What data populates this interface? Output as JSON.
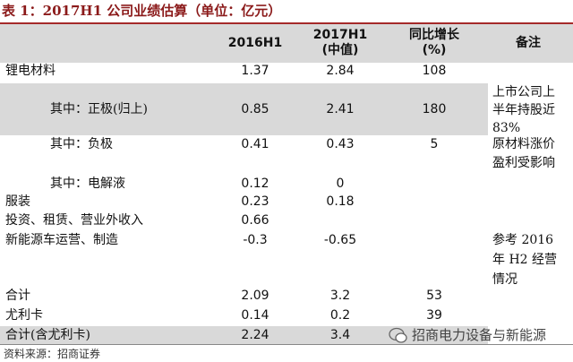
{
  "title": "表 1：2017H1 公司业绩估算（单位：亿元）",
  "table": {
    "header": [
      [
        "2016H1"
      ],
      [
        "2017H1",
        "(中值)"
      ],
      [
        "同比增长",
        "(%)"
      ],
      [
        "备注"
      ]
    ],
    "rows": [
      {
        "label": "锂电材料",
        "h2016": "1.37",
        "h2017": "2.84",
        "growth": "108"
      },
      {
        "label": "其中：正极(归上)",
        "h2016": "0.85",
        "h2017": "2.41",
        "growth": "180"
      },
      {
        "label": "其中：负极",
        "h2016": "0.41",
        "h2017": "0.43",
        "growth": "5"
      },
      {
        "label": "其中：电解液",
        "h2016": "0.12",
        "h2017": "0"
      },
      {
        "label": "服装",
        "h2016": "0.23",
        "h2017": "0.18"
      },
      {
        "label": "投资、租赁、营业外收入",
        "h2016": "0.66"
      },
      {
        "label": "新能源车运营、制造",
        "h2016": "-0.3",
        "h2017": "-0.65"
      },
      {
        "label": "合计",
        "h2016": "2.09",
        "h2017": "3.2",
        "growth": "53"
      },
      {
        "label": "尤利卡",
        "h2016": "0.14",
        "h2017": "0.2",
        "growth": "39"
      },
      {
        "label": "合计(含尤利卡)",
        "h2016": "2.24",
        "h2017": "3.4"
      }
    ],
    "notes": [
      [
        "上市公司上",
        "半年持股近",
        "83%"
      ],
      [
        "原材料涨价",
        "盈利受影响"
      ],
      [
        "参考 2016",
        "年 H2 经营",
        "情况"
      ]
    ]
  },
  "source": "资料来源：招商证券",
  "watermark": "招商电力设备与新能源"
}
